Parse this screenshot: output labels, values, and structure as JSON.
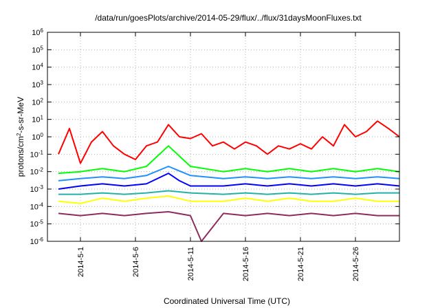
{
  "chart_data": {
    "type": "line",
    "title": "/data/run/goesPlots/archive/2014-05-29/flux/../flux/31daysMoonFluxes.txt",
    "xlabel": "Coordinated Universal Time (UTC)",
    "ylabel": {
      "base": "protons/cm",
      "sup": "2",
      "rest": "-s-sr-MeV"
    },
    "yscale": "log",
    "ylim": [
      1e-06,
      1000000.0
    ],
    "y_ticks": [
      {
        "base": "10",
        "exp": "-6",
        "value": 1e-06
      },
      {
        "base": "10",
        "exp": "-5",
        "value": 1e-05
      },
      {
        "base": "10",
        "exp": "-4",
        "value": 0.0001
      },
      {
        "base": "10",
        "exp": "-3",
        "value": 0.001
      },
      {
        "base": "10",
        "exp": "-2",
        "value": 0.01
      },
      {
        "base": "10",
        "exp": "-1",
        "value": 0.1
      },
      {
        "base": "10",
        "exp": "0",
        "value": 1
      },
      {
        "base": "10",
        "exp": "1",
        "value": 10
      },
      {
        "base": "10",
        "exp": "2",
        "value": 100
      },
      {
        "base": "10",
        "exp": "3",
        "value": 1000
      },
      {
        "base": "10",
        "exp": "4",
        "value": 10000
      },
      {
        "base": "10",
        "exp": "5",
        "value": 100000
      },
      {
        "base": "10",
        "exp": "6",
        "value": 1000000
      }
    ],
    "xlim": [
      "2014-04-28",
      "2014-05-30"
    ],
    "x_ticks": [
      "2014-5-1",
      "2014-5-6",
      "2014-5-11",
      "2014-5-16",
      "2014-5-21",
      "2014-5-26"
    ],
    "grid": true,
    "series": [
      {
        "color": "#8b2c5e",
        "x": [
          "2014-04-29",
          "2014-05-01",
          "2014-05-03",
          "2014-05-05",
          "2014-05-07",
          "2014-05-09",
          "2014-05-11",
          "2014-05-12",
          "2014-05-14",
          "2014-05-16",
          "2014-05-18",
          "2014-05-20",
          "2014-05-22",
          "2014-05-24",
          "2014-05-26",
          "2014-05-28",
          "2014-05-30"
        ],
        "y": [
          4e-05,
          3e-05,
          4e-05,
          3e-05,
          4e-05,
          5e-05,
          3e-05,
          1e-06,
          4e-05,
          3e-05,
          4e-05,
          3e-05,
          4e-05,
          3e-05,
          4e-05,
          3e-05,
          3e-05
        ]
      },
      {
        "color": "#ffff00",
        "x": [
          "2014-04-29",
          "2014-05-01",
          "2014-05-03",
          "2014-05-05",
          "2014-05-07",
          "2014-05-09",
          "2014-05-11",
          "2014-05-14",
          "2014-05-16",
          "2014-05-18",
          "2014-05-20",
          "2014-05-22",
          "2014-05-24",
          "2014-05-26",
          "2014-05-28",
          "2014-05-30"
        ],
        "y": [
          0.0002,
          0.00015,
          0.0003,
          0.0002,
          0.0003,
          0.0004,
          0.0002,
          0.0002,
          0.0003,
          0.0002,
          0.0003,
          0.0002,
          0.0002,
          0.0003,
          0.0002,
          0.0002
        ]
      },
      {
        "color": "#20b2aa",
        "x": [
          "2014-04-29",
          "2014-05-01",
          "2014-05-03",
          "2014-05-05",
          "2014-05-07",
          "2014-05-09",
          "2014-05-11",
          "2014-05-14",
          "2014-05-16",
          "2014-05-18",
          "2014-05-20",
          "2014-05-22",
          "2014-05-24",
          "2014-05-26",
          "2014-05-28",
          "2014-05-30"
        ],
        "y": [
          0.0005,
          0.0005,
          0.0006,
          0.0005,
          0.0006,
          0.0008,
          0.0006,
          0.0005,
          0.0006,
          0.0005,
          0.0006,
          0.0005,
          0.0006,
          0.0005,
          0.0006,
          0.0006
        ]
      },
      {
        "color": "#0000ff",
        "x": [
          "2014-04-29",
          "2014-05-01",
          "2014-05-03",
          "2014-05-05",
          "2014-05-07",
          "2014-05-09",
          "2014-05-10",
          "2014-05-11",
          "2014-05-14",
          "2014-05-16",
          "2014-05-18",
          "2014-05-20",
          "2014-05-22",
          "2014-05-24",
          "2014-05-26",
          "2014-05-28",
          "2014-05-30"
        ],
        "y": [
          0.001,
          0.0015,
          0.002,
          0.0015,
          0.002,
          0.008,
          0.003,
          0.0015,
          0.0015,
          0.002,
          0.0015,
          0.002,
          0.0015,
          0.002,
          0.0015,
          0.002,
          0.0015
        ]
      },
      {
        "color": "#1e90ff",
        "x": [
          "2014-04-29",
          "2014-05-01",
          "2014-05-03",
          "2014-05-05",
          "2014-05-07",
          "2014-05-09",
          "2014-05-11",
          "2014-05-14",
          "2014-05-16",
          "2014-05-18",
          "2014-05-20",
          "2014-05-22",
          "2014-05-24",
          "2014-05-26",
          "2014-05-28",
          "2014-05-30"
        ],
        "y": [
          0.003,
          0.004,
          0.005,
          0.004,
          0.006,
          0.02,
          0.006,
          0.004,
          0.005,
          0.004,
          0.005,
          0.004,
          0.005,
          0.004,
          0.005,
          0.004
        ]
      },
      {
        "color": "#00ff00",
        "x": [
          "2014-04-29",
          "2014-05-01",
          "2014-05-03",
          "2014-05-05",
          "2014-05-07",
          "2014-05-09",
          "2014-05-11",
          "2014-05-14",
          "2014-05-16",
          "2014-05-18",
          "2014-05-20",
          "2014-05-22",
          "2014-05-24",
          "2014-05-26",
          "2014-05-28",
          "2014-05-30"
        ],
        "y": [
          0.008,
          0.01,
          0.015,
          0.01,
          0.02,
          0.3,
          0.02,
          0.01,
          0.015,
          0.01,
          0.015,
          0.01,
          0.015,
          0.01,
          0.015,
          0.01
        ]
      },
      {
        "color": "#ff0000",
        "x": [
          "2014-04-29",
          "2014-04-30",
          "2014-05-01",
          "2014-05-02",
          "2014-05-03",
          "2014-05-04",
          "2014-05-05",
          "2014-05-06",
          "2014-05-07",
          "2014-05-08",
          "2014-05-09",
          "2014-05-10",
          "2014-05-11",
          "2014-05-12",
          "2014-05-13",
          "2014-05-14",
          "2014-05-15",
          "2014-05-16",
          "2014-05-17",
          "2014-05-18",
          "2014-05-19",
          "2014-05-20",
          "2014-05-21",
          "2014-05-22",
          "2014-05-23",
          "2014-05-24",
          "2014-05-25",
          "2014-05-26",
          "2014-05-27",
          "2014-05-28",
          "2014-05-29",
          "2014-05-30"
        ],
        "y": [
          0.1,
          3,
          0.03,
          0.5,
          2,
          0.3,
          0.1,
          0.05,
          0.3,
          0.5,
          5,
          1,
          0.8,
          1.5,
          0.3,
          0.5,
          0.2,
          0.5,
          0.3,
          0.1,
          0.3,
          0.2,
          0.4,
          0.2,
          1,
          0.3,
          5,
          1,
          2,
          8,
          3,
          1
        ]
      }
    ]
  }
}
